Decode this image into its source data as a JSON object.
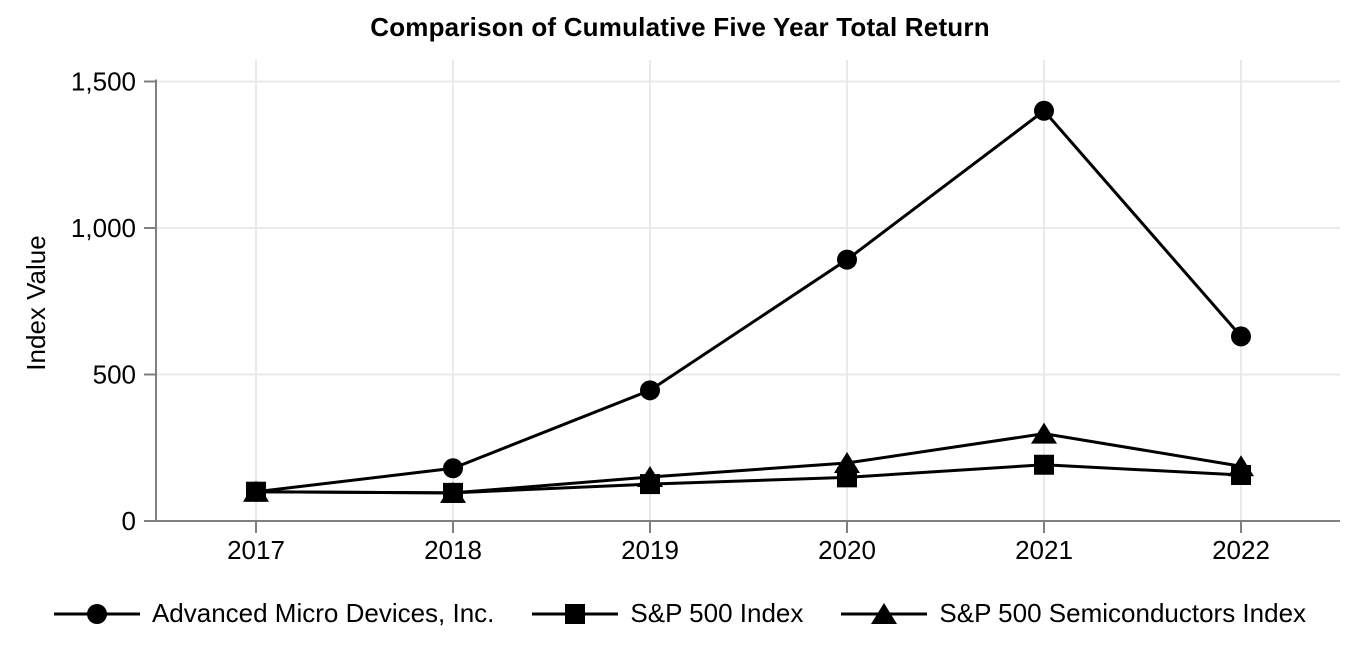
{
  "chart_data": {
    "type": "line",
    "title": "Comparison of Cumulative Five Year Total Return",
    "xlabel": "",
    "ylabel": "Index Value",
    "categories": [
      "2017",
      "2018",
      "2019",
      "2020",
      "2021",
      "2022"
    ],
    "ylim": [
      0,
      1500
    ],
    "y_ticks": [
      {
        "value": 0,
        "label": "0"
      },
      {
        "value": 500,
        "label": "500"
      },
      {
        "value": 1000,
        "label": "1,000"
      },
      {
        "value": 1500,
        "label": "1,500"
      }
    ],
    "grid": true,
    "legend_position": "bottom",
    "series": [
      {
        "name": "Advanced Micro Devices, Inc.",
        "marker": "circle",
        "color": "#000000",
        "values": [
          100,
          180,
          446,
          892,
          1400,
          630
        ]
      },
      {
        "name": "S&P 500 Index",
        "marker": "square",
        "color": "#000000",
        "values": [
          100,
          96,
          126,
          149,
          192,
          157
        ]
      },
      {
        "name": "S&P 500 Semiconductors Index",
        "marker": "triangle",
        "color": "#000000",
        "values": [
          100,
          96,
          150,
          198,
          298,
          187
        ]
      }
    ]
  },
  "colors": {
    "background": "#ffffff",
    "axis": "#808080",
    "grid": "#e8e8e8",
    "text": "#000000",
    "series": "#000000"
  }
}
